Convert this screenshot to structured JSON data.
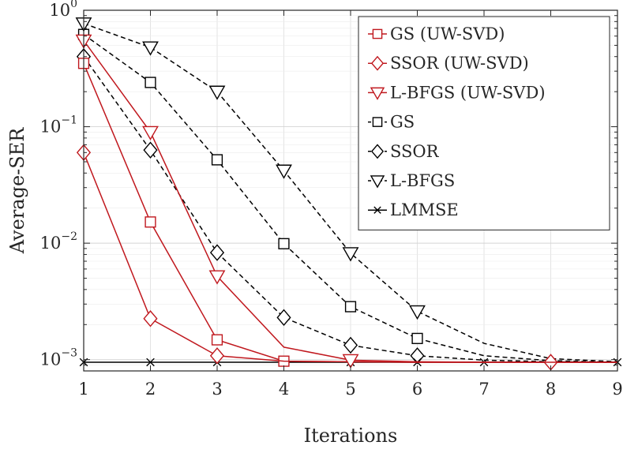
{
  "chart_data": {
    "type": "line",
    "title": "",
    "xlabel": "Iterations",
    "ylabel": "Average-SER",
    "xlim": [
      1,
      9
    ],
    "ylim": [
      0.0008,
      1
    ],
    "yscale": "log",
    "grid": true,
    "legend_position": "top-right",
    "x": [
      1,
      2,
      3,
      4,
      5,
      6,
      7,
      8,
      9
    ],
    "xticks": [
      "1",
      "2",
      "3",
      "4",
      "5",
      "6",
      "7",
      "8",
      "9"
    ],
    "yticks": [
      {
        "value": 1,
        "base": "10",
        "exp": "0"
      },
      {
        "value": 0.1,
        "base": "10",
        "exp": "−1"
      },
      {
        "value": 0.01,
        "base": "10",
        "exp": "−2"
      },
      {
        "value": 0.001,
        "base": "10",
        "exp": "−3"
      }
    ],
    "series": [
      {
        "name": "GS (UW-SVD)",
        "color": "#c0181e",
        "dash": "solid",
        "marker": "square",
        "values": [
          0.35,
          0.0152,
          0.00148,
          0.00097,
          0.00096,
          0.00095,
          0.00095,
          0.00095,
          0.00095
        ],
        "marker_at": [
          1,
          2,
          3,
          4
        ]
      },
      {
        "name": "SSOR (UW-SVD)",
        "color": "#c0181e",
        "dash": "solid",
        "marker": "diamond",
        "values": [
          0.06,
          0.00225,
          0.00108,
          0.00097,
          0.00096,
          0.00095,
          0.00095,
          0.00095,
          0.00095
        ],
        "marker_at": [
          1,
          2,
          3,
          8
        ]
      },
      {
        "name": "L-BFGS (UW-SVD)",
        "color": "#c0181e",
        "dash": "solid",
        "marker": "triangle-down",
        "values": [
          0.55,
          0.09,
          0.0052,
          0.00128,
          0.00099,
          0.00096,
          0.00095,
          0.00095,
          0.00095
        ],
        "marker_at": [
          1,
          2,
          3,
          5
        ]
      },
      {
        "name": "GS",
        "color": "#000000",
        "dash": "dashed",
        "marker": "square",
        "values": [
          0.62,
          0.24,
          0.052,
          0.0099,
          0.00285,
          0.00152,
          0.00108,
          0.00098,
          0.00095
        ],
        "marker_at": [
          1,
          2,
          3,
          4,
          5,
          6
        ]
      },
      {
        "name": "SSOR",
        "color": "#000000",
        "dash": "dashed",
        "marker": "diamond",
        "values": [
          0.4,
          0.063,
          0.0083,
          0.0023,
          0.00133,
          0.00108,
          0.00099,
          0.00096,
          0.00095
        ],
        "marker_at": [
          1,
          2,
          3,
          4,
          5,
          6
        ]
      },
      {
        "name": "L-BFGS",
        "color": "#000000",
        "dash": "dashed",
        "marker": "triangle-down",
        "values": [
          0.77,
          0.48,
          0.2,
          0.042,
          0.0082,
          0.0026,
          0.00138,
          0.00102,
          0.00096
        ],
        "marker_at": [
          1,
          2,
          3,
          4,
          5,
          6
        ]
      },
      {
        "name": "LMMSE",
        "color": "#000000",
        "dash": "solid",
        "marker": "x",
        "values": [
          0.00095,
          0.00095,
          0.00095,
          0.00095,
          0.00095,
          0.00095,
          0.00095,
          0.00095,
          0.00095
        ],
        "marker_at": [
          1,
          2,
          3,
          4,
          5,
          6,
          7,
          8,
          9
        ]
      }
    ]
  }
}
